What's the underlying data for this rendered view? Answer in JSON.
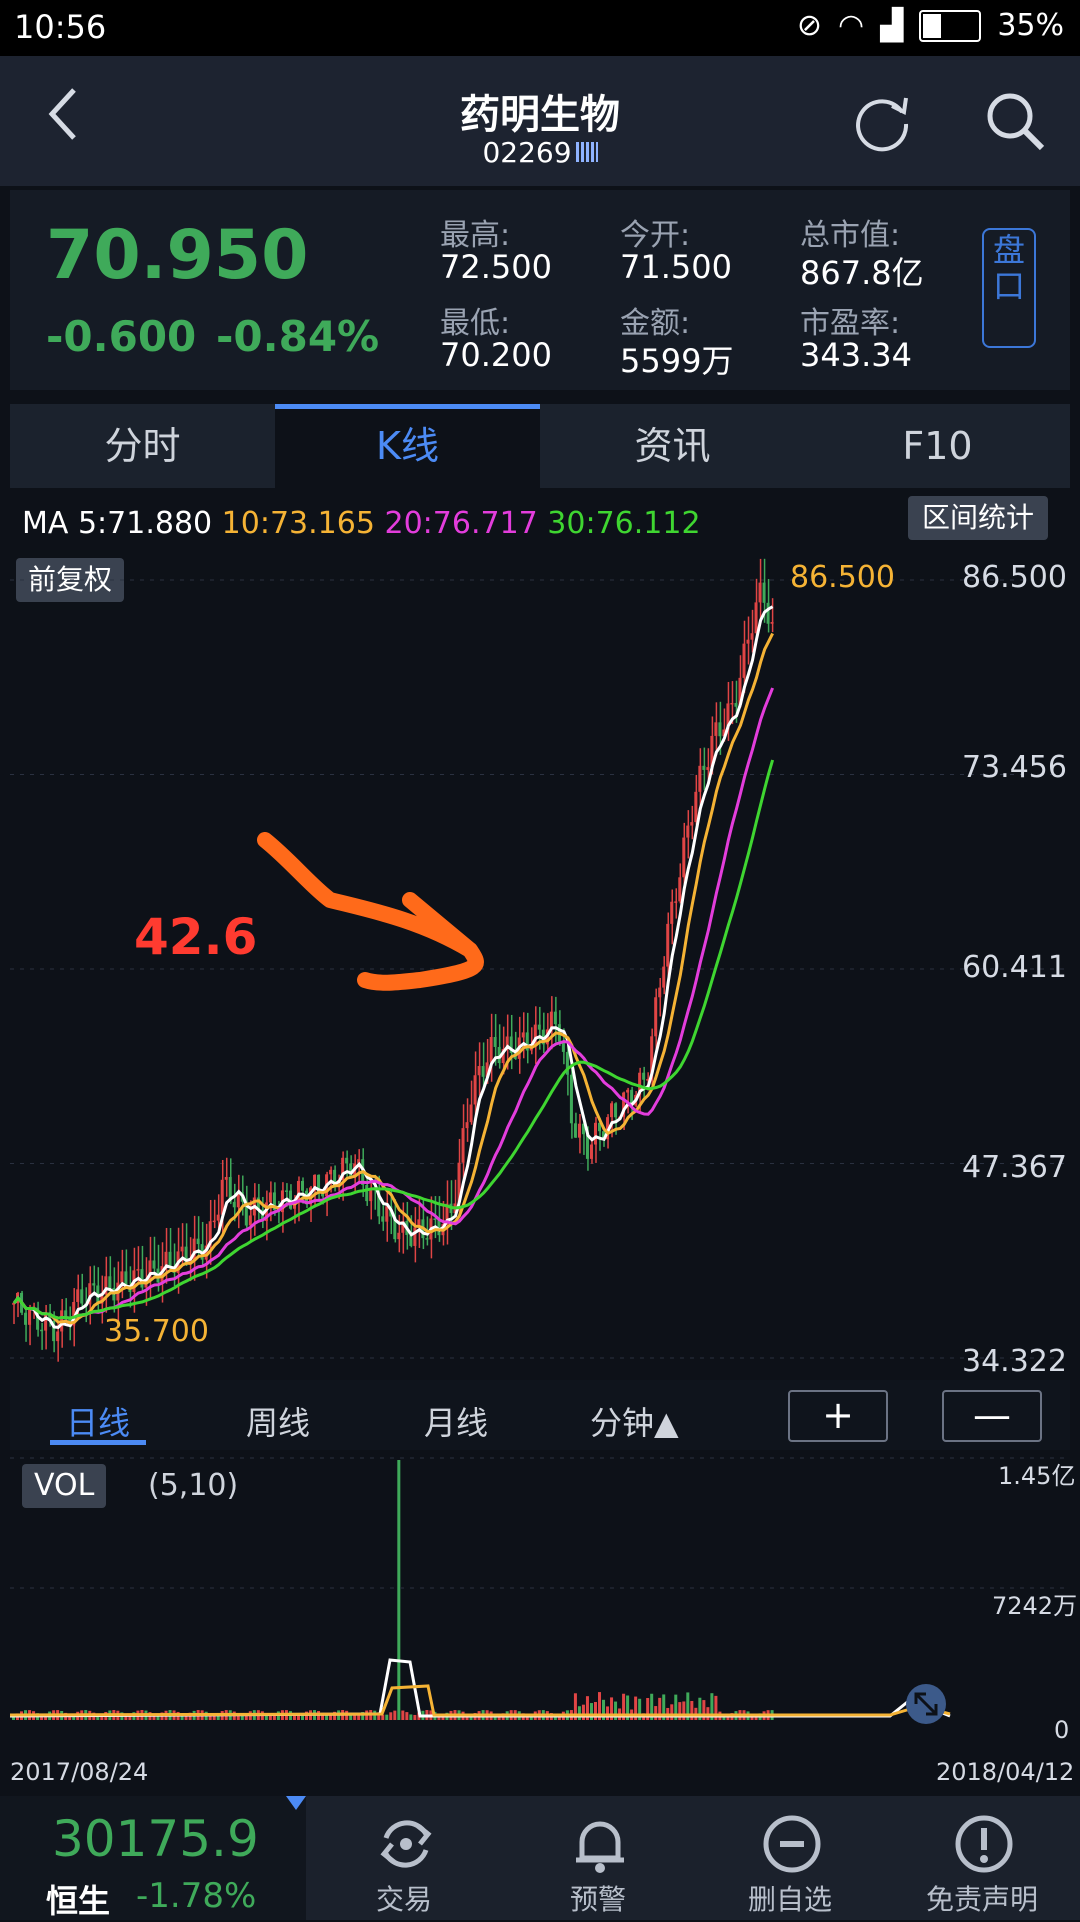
{
  "status_bar": {
    "time": "10:56",
    "battery": "35%"
  },
  "header": {
    "title": "药明生物",
    "code": "02269"
  },
  "quote": {
    "price": "70.950",
    "change": "-0.600",
    "change_pct": "-0.84%",
    "high_label": "最高:",
    "high": "72.500",
    "low_label": "最低:",
    "low": "70.200",
    "open_label": "今开:",
    "open": "71.500",
    "amount_label": "金额:",
    "amount": "5599万",
    "mktcap_label": "总市值:",
    "mktcap": "867.8亿",
    "pe_label": "市盈率:",
    "pe": "343.34",
    "pankou": "盘口"
  },
  "tabs": [
    "分时",
    "K线",
    "资讯",
    "F10"
  ],
  "chart": {
    "ma_prefix": "MA",
    "ma5": "5:71.880",
    "ma10": "10:73.165",
    "ma20": "20:76.717",
    "ma30": "30:76.112",
    "range_stats": "区间统计",
    "adjust": "前复权",
    "y_ticks": [
      "86.500",
      "73.456",
      "60.411",
      "47.367",
      "34.322"
    ],
    "max_label": "86.500",
    "min_label": "35.700",
    "annotation": "42.6",
    "colors": {
      "ma5": "#ffffff",
      "ma10": "#f5b335",
      "ma20": "#e33ddc",
      "ma30": "#3fd631",
      "up": "#e04545",
      "down": "#3faa5a",
      "arrow": "#ff6a1a"
    }
  },
  "periods": {
    "day": "日线",
    "week": "周线",
    "month": "月线",
    "minute": "分钟▲",
    "plus": "+",
    "minus": "—"
  },
  "volume": {
    "badge": "VOL",
    "params": "(5,10)",
    "y_ticks": [
      "1.45亿",
      "7242万",
      "0"
    ],
    "start_date": "2017/08/24",
    "end_date": "2018/04/12"
  },
  "chart_data": {
    "type": "candlestick",
    "title": "",
    "x_range": [
      "2017/08/24",
      "2018/04/12"
    ],
    "ylim": [
      34.322,
      86.5
    ],
    "y_ticks": [
      86.5,
      73.456,
      60.411,
      47.367,
      34.322
    ],
    "series": [
      {
        "name": "MA5",
        "last": 71.88
      },
      {
        "name": "MA10",
        "last": 73.165
      },
      {
        "name": "MA20",
        "last": 76.717
      },
      {
        "name": "MA30",
        "last": 76.112
      }
    ],
    "annotations": [
      {
        "text": "86.500",
        "value": 86.5
      },
      {
        "text": "35.700",
        "value": 35.7
      },
      {
        "text": "42.6"
      }
    ],
    "volume_ticks": [
      "1.45亿",
      "7242万",
      "0"
    ],
    "legend": "top-left",
    "grid": true
  },
  "bottom": {
    "index_value": "30175.9",
    "index_name": "恒生",
    "index_change": "-1.78%",
    "items": [
      {
        "label": "交易",
        "icon": "trade-refresh-icon"
      },
      {
        "label": "预警",
        "icon": "bell-icon"
      },
      {
        "label": "删自选",
        "icon": "minus-circle-icon"
      },
      {
        "label": "免责声明",
        "icon": "exclamation-circle-icon"
      }
    ]
  }
}
